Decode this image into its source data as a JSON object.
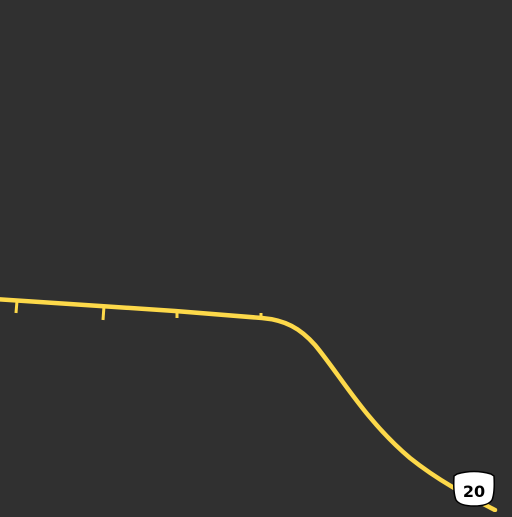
{
  "map": {
    "background_color": "#303030",
    "road_color": "#fdd94a",
    "shield": {
      "label": "20",
      "icon": "us-highway-shield-icon",
      "fill": "#ffffff",
      "stroke": "#000000"
    }
  }
}
